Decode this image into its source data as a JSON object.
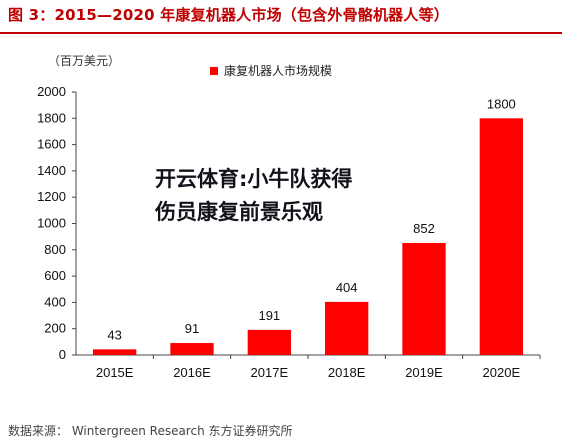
{
  "title": "图 3：2015—2020 年康复机器人市场（包含外骨骼机器人等）",
  "overlay": {
    "line1": "开云体育:小牛队获得",
    "line2": "伤员康复前景乐观"
  },
  "source": "数据来源：  Wintergreen  Research  东方证券研究所",
  "colors": {
    "title": "#c00000",
    "bar": "#ff0000"
  },
  "chart_data": {
    "type": "bar",
    "title": "",
    "ylabel": "（百万美元）",
    "xlabel": "",
    "categories": [
      "2015E",
      "2016E",
      "2017E",
      "2018E",
      "2019E",
      "2020E"
    ],
    "series": [
      {
        "name": "康复机器人市场规模",
        "values": [
          43,
          91,
          191,
          404,
          852,
          1800
        ]
      }
    ],
    "ylim": [
      0,
      2000
    ],
    "yticks": [
      0,
      200,
      400,
      600,
      800,
      1000,
      1200,
      1400,
      1600,
      1800,
      2000
    ],
    "data_labels": true,
    "grid": false,
    "legend": "top-center"
  }
}
